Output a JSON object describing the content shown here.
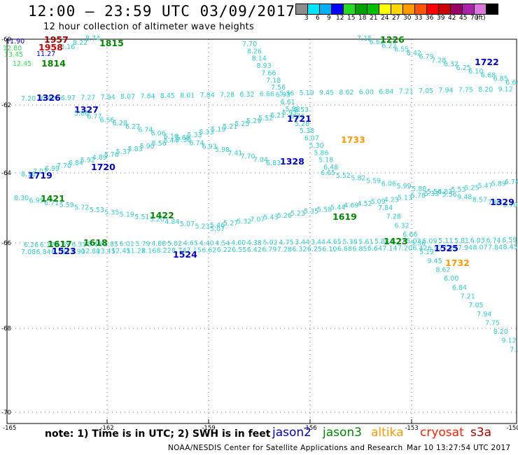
{
  "title": "12:00 – 23:59 UTC 03/09/2017",
  "subtitle": "12 hour collection of altimeter wave heights",
  "scale": {
    "colors": [
      "#8c8c8c",
      "#00e5ff",
      "#00b0f0",
      "#0000ff",
      "#22dd22",
      "#00a000",
      "#00c000",
      "#ffff00",
      "#ffd700",
      "#ff9900",
      "#ff5500",
      "#ff0000",
      "#cc0000",
      "#990066",
      "#aa22aa",
      "#dd77dd",
      "#000000"
    ],
    "labels": [
      "3",
      "6",
      "9",
      "12",
      "15",
      "18",
      "21",
      "24",
      "27",
      "30",
      "33",
      "36",
      "39",
      "42",
      "45",
      "70",
      "(ft)"
    ]
  },
  "axes": {
    "y_labels": [
      "-60",
      "-62",
      "-64",
      "-66",
      "-68",
      "-70"
    ],
    "x_labels": [
      "-165",
      "-162",
      "-159",
      "-156",
      "-153",
      "-150"
    ]
  },
  "colors": {
    "swh": "#33cccc",
    "jason2": "#0000cc",
    "jason3": "#008800",
    "altika": "#ff9900",
    "cryosat": "#ff2200",
    "s3a": "#aa0000",
    "swh_lightgreen": "#33dd55"
  },
  "note": "note: 1) Time is in UTC; 2) SWH is in feet",
  "legend": [
    {
      "name": "jason2",
      "color": "#0000cc"
    },
    {
      "name": "jason3",
      "color": "#008800"
    },
    {
      "name": "altika",
      "color": "#ff9900"
    },
    {
      "name": "cryosat",
      "color": "#ff2200"
    },
    {
      "name": "s3a",
      "color": "#aa0000"
    }
  ],
  "credit": "NOAA/NESDIS Center for Satellite Applications and Research",
  "timestamp": "Mar 10 13:27:54 UTC 2017",
  "pass_times": [
    {
      "t": "1957",
      "c": "#990000"
    },
    {
      "t": "1958",
      "c": "#cc0000"
    },
    {
      "t": "1815",
      "c": "#008800"
    },
    {
      "t": "1814",
      "c": "#008800"
    },
    {
      "t": "1226",
      "c": "#008800"
    },
    {
      "t": "1722",
      "c": "#0000cc"
    },
    {
      "t": "1326",
      "c": "#0000cc"
    },
    {
      "t": "1327",
      "c": "#0000cc"
    },
    {
      "t": "1721",
      "c": "#0000cc"
    },
    {
      "t": "1733",
      "c": "#ff9900"
    },
    {
      "t": "1720",
      "c": "#0000cc"
    },
    {
      "t": "1719",
      "c": "#0000cc"
    },
    {
      "t": "1328",
      "c": "#0000cc"
    },
    {
      "t": "1421",
      "c": "#008800"
    },
    {
      "t": "1422",
      "c": "#008800"
    },
    {
      "t": "1619",
      "c": "#008800"
    },
    {
      "t": "1329",
      "c": "#0000cc"
    },
    {
      "t": "1423",
      "c": "#008800"
    },
    {
      "t": "1617",
      "c": "#008800"
    },
    {
      "t": "1618",
      "c": "#008800"
    },
    {
      "t": "1523",
      "c": "#0000cc"
    },
    {
      "t": "1524",
      "c": "#0000cc"
    },
    {
      "t": "1525",
      "c": "#0000cc"
    },
    {
      "t": "1732",
      "c": "#ff9900"
    }
  ],
  "swh_values": [
    "11.90",
    "12.80",
    "13.45",
    "12.45",
    "11.27",
    "8.16",
    "8.22",
    "8.74",
    "7.15",
    "6.62",
    "6.22",
    "6.55",
    "6.42",
    "6.79",
    "7.28",
    "6.32",
    "6.25",
    "6.10",
    "6.68",
    "6.85",
    "6.64",
    "7.14",
    "7.20",
    "6.42",
    "6.97",
    "7.27",
    "7.94",
    "8.07",
    "7.84",
    "8.45",
    "8.01",
    "7.84",
    "7.28",
    "6.32",
    "6.66",
    "5.36",
    "5.19",
    "9.45",
    "8.62",
    "6.00",
    "6.84",
    "7.21",
    "7.05",
    "7.94",
    "7.75",
    "8.20",
    "9.12",
    "7.70",
    "7.70",
    "8.26",
    "8.14",
    "8.93",
    "7.66",
    "7.18",
    "7.56",
    "6.93",
    "6.61",
    "5.88",
    "6.76",
    "5.28",
    "5.38",
    "6.07",
    "5.30",
    "5.86",
    "5.18",
    "6.48",
    "6.65",
    "5.52",
    "5.82",
    "5.59",
    "6.06",
    "5.99",
    "5.88",
    "5.56",
    "5.56",
    "9.48",
    "8.57",
    "7.63",
    "9.70",
    "8.60",
    "8.18",
    "7.07",
    "6.99",
    "7.70",
    "6.84",
    "5.92",
    "4.89",
    "5.76",
    "5.37",
    "5.83",
    "5.90",
    "5.56",
    "5.44",
    "5.68",
    "5.33",
    "5.33",
    "5.19",
    "5.21",
    "5.25",
    "5.29",
    "5.52",
    "6.21",
    "5.93",
    "6.53",
    "5.86",
    "6.77",
    "6.56",
    "6.28",
    "6.27",
    "6.74",
    "6.06",
    "6.10",
    "7.30",
    "6.74",
    "6.93",
    "5.98",
    "7.41",
    "7.70",
    "7.04",
    "6.83",
    "8.30",
    "6.95",
    "6.71",
    "5.59",
    "5.72",
    "5.53",
    "5.35",
    "5.19",
    "5.51",
    "5.20",
    "4.84",
    "5.07",
    "5.23",
    "5.07",
    "5.46",
    "5.27",
    "5.32",
    "7.07",
    "5.43",
    "5.26",
    "5.23",
    "5.35",
    "5.58",
    "5.44",
    "4.69",
    "4.52",
    "5.09",
    "4.23",
    "5.13",
    "5.78",
    "5.33",
    "4.83",
    "5.53",
    "5.25",
    "5.47",
    "5.89",
    "6.74",
    "6.52",
    "6.26",
    "6.17",
    "6.59",
    "6.33",
    "5.68",
    "5.85",
    "6.01",
    "5.79",
    "4.88",
    "5.02",
    "4.65",
    "4.40",
    "4.54",
    "4.60",
    "4.38",
    "5.02",
    "4.75",
    "3.44",
    "3.44",
    "4.65",
    "5.38",
    "5.61",
    "5.84",
    "5.27",
    "5.02",
    "5.09",
    "5.11",
    "5.81",
    "6.03",
    "6.74",
    "6.59",
    "7.04",
    "7.08",
    "6.84",
    "6.15"
  ]
}
